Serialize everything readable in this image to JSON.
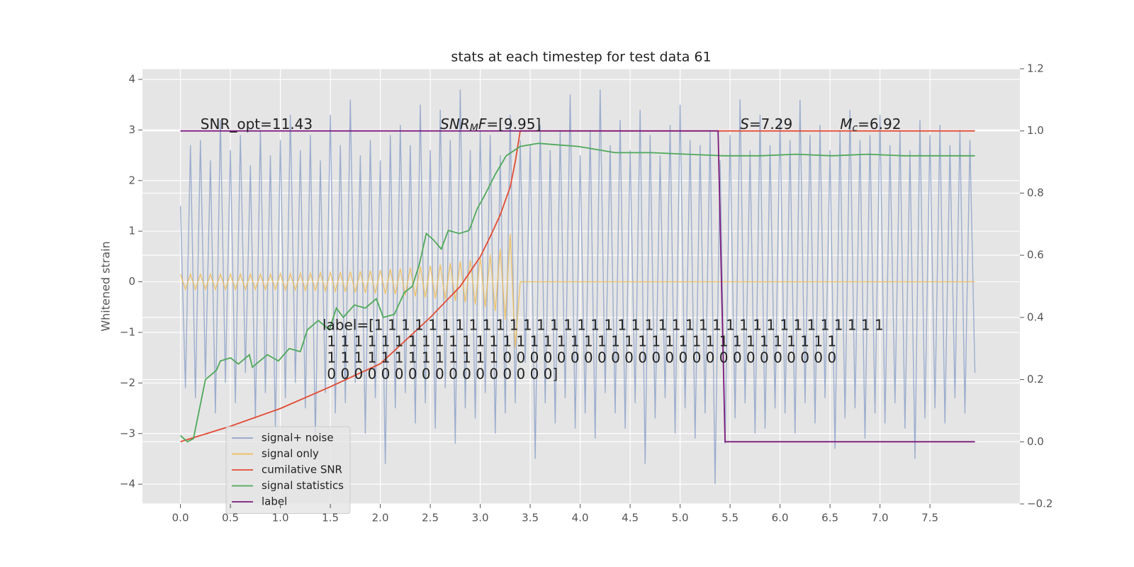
{
  "chart_data": {
    "type": "line",
    "title": "stats at each timestep for test data 61",
    "ylabel": "Whitened strain",
    "xlim": [
      -0.38,
      8.4
    ],
    "ylim": [
      -4.39,
      4.21
    ],
    "y2lim": [
      -0.2,
      1.2
    ],
    "xticks": [
      {
        "value": 0,
        "label": "0.0"
      },
      0.5,
      {
        "value": 1,
        "label": "1.0"
      },
      1.5,
      {
        "value": 2,
        "label": "2.0"
      },
      2.5,
      {
        "value": 3,
        "label": "3.0"
      },
      3.5,
      {
        "value": 4,
        "label": "4.0"
      },
      4.5,
      {
        "value": 5,
        "label": "5.0"
      },
      5.5,
      {
        "value": 6,
        "label": "6.0"
      },
      6.5,
      {
        "value": 7,
        "label": "7.0"
      },
      7.5
    ],
    "yticks": [
      {
        "value": -4,
        "label": "−4"
      },
      {
        "value": -3,
        "label": "−3"
      },
      {
        "value": -2,
        "label": "−2"
      },
      {
        "value": -1,
        "label": "−1"
      },
      0,
      1,
      2,
      3,
      4
    ],
    "y2ticks": [
      {
        "value": -0.2,
        "label": "−0.2"
      },
      {
        "value": 0,
        "label": "0.0"
      },
      0.2,
      0.4,
      0.6,
      0.8,
      {
        "value": 1,
        "label": "1.0"
      },
      1.2
    ],
    "grid": true,
    "legend": "lower left",
    "x": [
      0,
      0.05,
      0.1,
      0.15,
      0.2,
      0.25,
      0.3,
      0.35,
      0.4,
      0.45,
      0.5,
      0.55,
      0.6,
      0.65,
      0.7,
      0.75,
      0.8,
      0.85,
      0.9,
      0.95,
      1,
      1.05,
      1.1,
      1.15,
      1.2,
      1.25,
      1.3,
      1.35,
      1.4,
      1.45,
      1.5,
      1.55,
      1.6,
      1.65,
      1.7,
      1.75,
      1.8,
      1.85,
      1.9,
      1.95,
      2,
      2.05,
      2.1,
      2.15,
      2.2,
      2.25,
      2.3,
      2.35,
      2.4,
      2.45,
      2.5,
      2.55,
      2.6,
      2.65,
      2.7,
      2.75,
      2.8,
      2.85,
      2.9,
      2.95,
      3,
      3.05,
      3.1,
      3.15,
      3.2,
      3.25,
      3.3,
      3.35,
      3.4,
      3.45,
      3.5,
      3.55,
      3.6,
      3.65,
      3.7,
      3.75,
      3.8,
      3.85,
      3.9,
      3.95,
      4,
      4.05,
      4.1,
      4.15,
      4.2,
      4.25,
      4.3,
      4.35,
      4.4,
      4.45,
      4.5,
      4.55,
      4.6,
      4.65,
      4.7,
      4.75,
      4.8,
      4.85,
      4.9,
      4.95,
      5,
      5.05,
      5.1,
      5.15,
      5.2,
      5.25,
      5.3,
      5.35,
      5.4,
      5.45,
      5.5,
      5.55,
      5.6,
      5.65,
      5.7,
      5.75,
      5.8,
      5.85,
      5.9,
      5.95,
      6,
      6.05,
      6.1,
      6.15,
      6.2,
      6.25,
      6.3,
      6.35,
      6.4,
      6.45,
      6.5,
      6.55,
      6.6,
      6.65,
      6.7,
      6.75,
      6.8,
      6.85,
      6.9,
      6.95,
      7,
      7.05,
      7.1,
      7.15,
      7.2,
      7.25,
      7.3,
      7.35,
      7.4,
      7.45,
      7.5,
      7.55,
      7.6,
      7.65,
      7.7,
      7.75,
      7.8,
      7.85,
      7.9,
      7.95
    ],
    "series": [
      {
        "name": "signal+ noise",
        "color": "#8fa3ca",
        "values": [
          1.5,
          -2.1,
          2.7,
          -2.3,
          2.8,
          -1.9,
          2.4,
          -2.6,
          3.2,
          -2.0,
          2.6,
          -2.4,
          2.9,
          -1.8,
          2.3,
          -2.7,
          3.0,
          -2.2,
          2.5,
          -2.9,
          2.8,
          -2.3,
          3.3,
          -2.0,
          2.6,
          -2.5,
          2.9,
          -3.1,
          2.4,
          -2.2,
          3.3,
          -2.6,
          2.7,
          -2.4,
          3.6,
          -2.0,
          2.5,
          -3.0,
          2.8,
          -2.3,
          2.4,
          -3.6,
          2.9,
          -2.5,
          3.1,
          -2.2,
          2.7,
          -2.8,
          3.5,
          -2.4,
          2.6,
          -2.9,
          3.4,
          -2.1,
          2.8,
          -3.2,
          3.8,
          -2.5,
          2.6,
          -2.7,
          3.0,
          -2.2,
          2.9,
          -3.0,
          2.5,
          -2.6,
          3.3,
          -2.4,
          2.8,
          -1.6,
          2.7,
          -3.5,
          3.1,
          -2.4,
          2.6,
          -2.8,
          3.0,
          -2.3,
          3.7,
          -2.9,
          2.5,
          -2.6,
          3.0,
          -3.1,
          3.8,
          -2.2,
          2.7,
          -2.6,
          3.2,
          -2.9,
          2.6,
          -2.4,
          3.4,
          -3.6,
          2.9,
          -2.7,
          2.5,
          -2.3,
          3.1,
          -3.0,
          3.5,
          -2.5,
          2.8,
          -3.1,
          2.7,
          -2.6,
          3.0,
          -4.0,
          2.4,
          -3.2,
          2.9,
          -2.7,
          3.6,
          -2.4,
          2.6,
          -3.0,
          3.3,
          -2.9,
          2.7,
          -2.5,
          3.2,
          -2.6,
          2.8,
          -3.0,
          3.6,
          -2.4,
          2.9,
          -2.8,
          3.1,
          -2.3,
          2.6,
          -3.3,
          3.0,
          -2.7,
          3.4,
          -2.5,
          2.8,
          -3.1,
          2.9,
          -2.6,
          3.3,
          -2.8,
          2.7,
          -2.4,
          3.0,
          -2.9,
          2.6,
          -3.5,
          3.2,
          -2.7,
          2.9,
          -2.5,
          3.1,
          -2.8,
          2.7,
          -2.3,
          3.0,
          -2.6,
          2.8,
          -1.8
        ]
      },
      {
        "name": "signal only",
        "color": "#eebd57",
        "values": [
          0.15,
          -0.15,
          0.15,
          -0.15,
          0.15,
          -0.15,
          0.15,
          -0.15,
          0.15,
          -0.15,
          0.15,
          -0.15,
          0.15,
          -0.15,
          0.15,
          -0.15,
          0.15,
          -0.15,
          0.15,
          -0.15,
          0.16,
          -0.16,
          0.16,
          -0.16,
          0.17,
          -0.17,
          0.17,
          -0.17,
          0.18,
          -0.18,
          0.18,
          -0.19,
          0.19,
          -0.2,
          0.2,
          -0.21,
          0.21,
          -0.22,
          0.22,
          -0.23,
          0.23,
          -0.24,
          0.25,
          -0.25,
          0.26,
          -0.27,
          0.28,
          -0.29,
          0.3,
          -0.31,
          0.32,
          -0.33,
          0.34,
          -0.35,
          0.37,
          -0.38,
          0.4,
          -0.41,
          0.43,
          -0.45,
          0.47,
          -0.5,
          0.54,
          -0.58,
          0.65,
          -0.75,
          0.95,
          -1.3,
          0,
          0,
          0,
          0,
          0,
          0,
          0,
          0,
          0,
          0,
          0,
          0,
          0,
          0,
          0,
          0,
          0,
          0,
          0,
          0,
          0,
          0,
          0,
          0,
          0,
          0,
          0,
          0,
          0,
          0,
          0,
          0,
          0,
          0,
          0,
          0,
          0,
          0,
          0,
          0,
          0,
          0,
          0,
          0,
          0,
          0,
          0,
          0,
          0,
          0,
          0,
          0,
          0,
          0,
          0,
          0,
          0,
          0,
          0,
          0,
          0,
          0,
          0,
          0,
          0,
          0,
          0,
          0,
          0,
          0,
          0,
          0,
          0,
          0,
          0,
          0,
          0,
          0,
          0,
          0,
          0,
          0,
          0,
          0,
          0,
          0,
          0,
          0,
          0,
          0,
          0,
          0
        ]
      },
      {
        "name": "cumilative SNR",
        "color": "#e24a33",
        "axis": "y2",
        "x": [
          0,
          0.5,
          1,
          1.5,
          2,
          2.5,
          2.8,
          3,
          3.1,
          3.2,
          3.3,
          3.35,
          3.4,
          7.95
        ],
        "values": [
          0,
          0.05,
          0.107,
          0.177,
          0.251,
          0.4,
          0.5,
          0.595,
          0.66,
          0.73,
          0.82,
          0.9,
          1,
          1
        ]
      },
      {
        "name": "signal statistics",
        "color": "#4ea85a",
        "axis": "y2",
        "x": [
          0,
          0.07,
          0.13,
          0.25,
          0.36,
          0.4,
          0.5,
          0.58,
          0.69,
          0.72,
          0.87,
          0.98,
          1.09,
          1.2,
          1.27,
          1.38,
          1.49,
          1.56,
          1.63,
          1.74,
          1.85,
          1.96,
          2.03,
          2.14,
          2.24,
          2.32,
          2.39,
          2.46,
          2.53,
          2.61,
          2.68,
          2.79,
          2.89,
          2.97,
          3.04,
          3.15,
          3.26,
          3.4,
          3.58,
          3.98,
          4.35,
          4.71,
          5.07,
          5.43,
          5.8,
          6.16,
          6.52,
          6.88,
          7.24,
          7.6,
          7.95
        ],
        "values": [
          0.02,
          0,
          0.01,
          0.2,
          0.23,
          0.26,
          0.27,
          0.25,
          0.28,
          0.24,
          0.28,
          0.26,
          0.3,
          0.29,
          0.36,
          0.39,
          0.36,
          0.43,
          0.4,
          0.44,
          0.43,
          0.46,
          0.4,
          0.41,
          0.48,
          0.5,
          0.57,
          0.67,
          0.65,
          0.62,
          0.68,
          0.67,
          0.68,
          0.75,
          0.79,
          0.86,
          0.92,
          0.95,
          0.96,
          0.95,
          0.93,
          0.93,
          0.925,
          0.92,
          0.92,
          0.925,
          0.92,
          0.925,
          0.92,
          0.92,
          0.92
        ]
      },
      {
        "name": "label",
        "color": "#7b1a7b",
        "axis": "y2",
        "x": [
          0,
          5.38,
          5.45,
          7.95
        ],
        "values": [
          1,
          1,
          0,
          0
        ]
      }
    ],
    "annotations": [
      {
        "parts": [
          {
            "text": "SNR_opt=11.43"
          }
        ]
      },
      {
        "parts": [
          {
            "text": "SNR",
            "style": "italic"
          },
          {
            "text": "M",
            "style": "sub"
          },
          {
            "text": "F",
            "style": "italic"
          },
          {
            "text": "=[9.95]"
          }
        ]
      },
      {
        "parts": [
          {
            "text": "S",
            "style": "italic"
          },
          {
            "text": "=7.29"
          }
        ]
      },
      {
        "parts": [
          {
            "text": "M",
            "style": "italic"
          },
          {
            "text": "c",
            "style": "sub"
          },
          {
            "text": "=6.92"
          }
        ]
      }
    ],
    "label_text": [
      "label=[1 1 1 1 1 1 1 1 1 1 1 1 1 1 1 1 1 1 1 1 1 1 1 1 1 1 1 1 1 1 1 1 1 1 1 1 1 1",
      " 1 1 1 1 1 1 1 1 1 1 1 1 1 1 1 1 1 1 1 1 1 1 1 1 1 1 1 1 1 1 1 1 1 1 1 1 1 1",
      " 1 1 1 1 1 1 1 1 1 1 1 1 1 0 0 0 0 0 0 0 0 0 0 0 0 0 0 0 0 0 0 0 0 0 0 0 0 0",
      " 0 0 0 0 0 0 0 0 0 0 0 0 0 0 0 0 0]"
    ]
  }
}
